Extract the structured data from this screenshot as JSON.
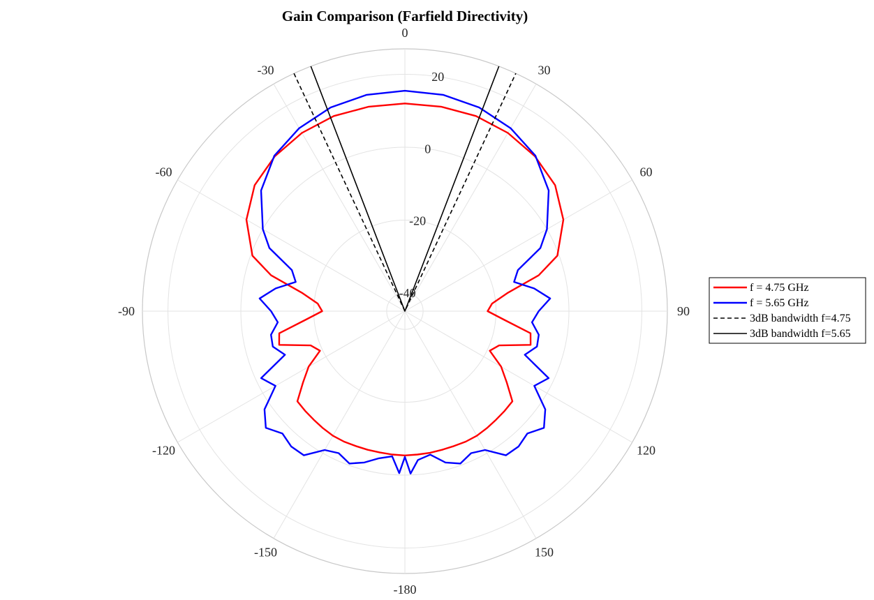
{
  "chart_data": {
    "type": "polar-line",
    "title": "Gain Comparison (Farfield Directivity)",
    "theta_zero": "top",
    "theta_direction": "clockwise",
    "theta_ticks": [
      0,
      30,
      60,
      90,
      120,
      150,
      -180,
      -150,
      -120,
      -90,
      -60,
      -30
    ],
    "r_range": [
      -45,
      27
    ],
    "r_ticks": [
      20,
      0,
      -20,
      -40
    ],
    "r_tick_label_angle_deg": 8,
    "grid": true,
    "legend": {
      "placement": "right",
      "entries": [
        "f = 4.75 GHz",
        "f = 5.65 GHz",
        "3dB bandwidth f=4.75",
        "3dB bandwidth f=5.65"
      ]
    },
    "series": [
      {
        "name": "f = 4.75 GHz",
        "color": "#ff0000",
        "style": "solid",
        "theta": [
          0,
          10,
          20,
          30,
          40,
          50,
          60,
          70,
          75,
          80,
          85,
          90,
          95,
          100,
          105,
          110,
          115,
          120,
          125,
          130,
          135,
          140,
          145,
          150,
          155,
          160,
          165,
          170,
          175,
          180,
          -175,
          -170,
          -165,
          -160,
          -155,
          -150,
          -145,
          -140,
          -135,
          -130,
          -125,
          -120,
          -115,
          -110,
          -105,
          -100,
          -95,
          -90,
          -85,
          -80,
          -75,
          -70,
          -60,
          -50,
          -40,
          -30,
          -20,
          -10
        ],
        "r": [
          12,
          12,
          12,
          11.5,
          10.5,
          8.8,
          5.2,
          -0.5,
          -7,
          -16.5,
          -21,
          -22.3,
          -17.6,
          -10,
          -9.3,
          -17.5,
          -19.3,
          -14.5,
          -10.9,
          -6.5,
          -6.3,
          -6.1,
          -5.8,
          -5.5,
          -5.5,
          -5.6,
          -5.6,
          -5.5,
          -5.5,
          -5.4,
          -5.5,
          -5.6,
          -5.6,
          -5.6,
          -5.5,
          -5.5,
          -5.8,
          -6.1,
          -6.3,
          -6.5,
          -10.9,
          -14.5,
          -19.3,
          -17.5,
          -9.3,
          -10,
          -17.6,
          -22.3,
          -21,
          -16.5,
          -7,
          -0.5,
          5.2,
          8.8,
          10.5,
          11.5,
          12,
          12
        ]
      },
      {
        "name": "f = 5.65 GHz",
        "color": "#0000ff",
        "style": "solid",
        "theta": [
          0,
          10,
          20,
          30,
          40,
          50,
          60,
          65,
          70,
          75,
          80,
          85,
          90,
          95,
          100,
          105,
          110,
          115,
          120,
          125,
          130,
          135,
          140,
          145,
          150,
          155,
          160,
          165,
          170,
          175,
          178,
          180,
          -178,
          -175,
          -170,
          -165,
          -160,
          -155,
          -150,
          -145,
          -140,
          -135,
          -130,
          -125,
          -120,
          -115,
          -110,
          -105,
          -100,
          -95,
          -90,
          -85,
          -80,
          -75,
          -70,
          -65,
          -60,
          -50,
          -40,
          -30,
          -20,
          -10
        ],
        "r": [
          15.5,
          15.3,
          14.5,
          13,
          10.7,
          6.5,
          0,
          -4,
          -12,
          -14,
          -9,
          -5,
          -8.3,
          -10,
          -7.7,
          -7.5,
          -10,
          -1.5,
          -4,
          2,
          4.8,
          2.5,
          3.5,
          3.3,
          -1,
          -2,
          -0.5,
          -2,
          -5,
          -4,
          -0.4,
          -5,
          -0.5,
          -5,
          -4,
          -2,
          -0.5,
          -2,
          -1,
          3.3,
          3.5,
          2.5,
          4.8,
          2,
          -4,
          -1.5,
          -10,
          -7.5,
          -7.7,
          -10,
          -8.3,
          -5,
          -9,
          -14,
          -12,
          -4,
          0,
          6.5,
          10.7,
          13,
          14.5,
          15.3
        ]
      },
      {
        "name": "3dB bandwidth f=4.75",
        "color": "#000000",
        "style": "dashed",
        "theta": [
          -25,
          25
        ],
        "r": [
          27,
          27
        ]
      },
      {
        "name": "3dB bandwidth f=5.65",
        "color": "#000000",
        "style": "solid",
        "theta": [
          -21,
          21
        ],
        "r": [
          27,
          27
        ]
      }
    ]
  }
}
